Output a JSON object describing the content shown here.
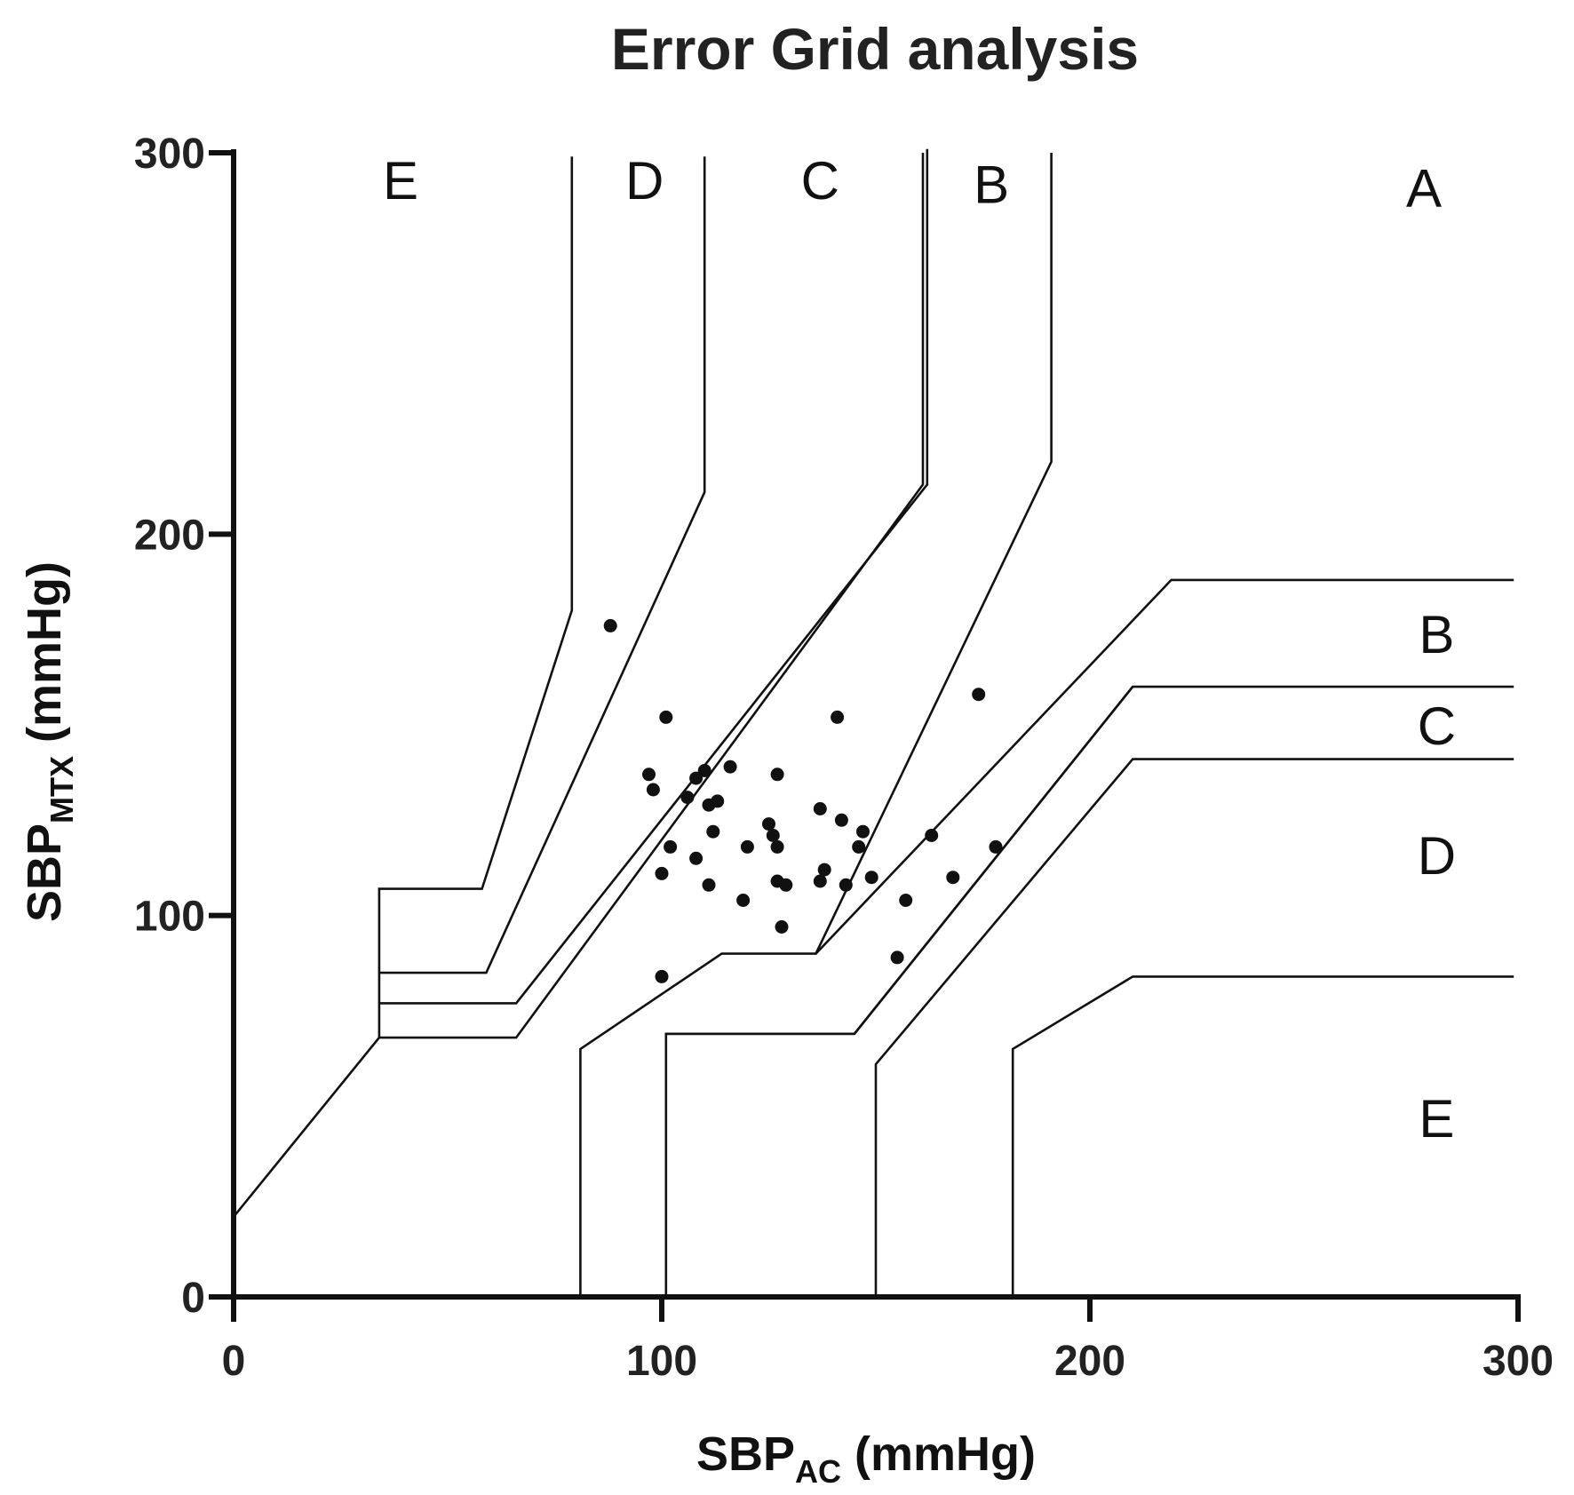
{
  "chart_data": {
    "type": "scatter",
    "title": "Error Grid analysis",
    "xlabel": {
      "main": "SBP",
      "sub": "AC",
      "unit": " (mmHg)"
    },
    "ylabel": {
      "main": "SBP",
      "sub": "MTX",
      "unit": " (mmHg)"
    },
    "xlim": [
      0,
      300
    ],
    "ylim": [
      0,
      300
    ],
    "xticks": [
      0,
      100,
      200,
      300
    ],
    "yticks": [
      0,
      100,
      200,
      300
    ],
    "grid": false,
    "zone_labels": [
      {
        "text": "E",
        "x": 39,
        "y": 293
      },
      {
        "text": "D",
        "x": 96,
        "y": 293
      },
      {
        "text": "C",
        "x": 137,
        "y": 293
      },
      {
        "text": "B",
        "x": 177,
        "y": 292
      },
      {
        "text": "A",
        "x": 278,
        "y": 291
      },
      {
        "text": "B",
        "x": 281,
        "y": 174
      },
      {
        "text": "C",
        "x": 281,
        "y": 150
      },
      {
        "text": "D",
        "x": 281,
        "y": 116
      },
      {
        "text": "E",
        "x": 281,
        "y": 47
      }
    ],
    "boundaries": [
      [
        [
          0,
          21
        ],
        [
          34,
          68
        ],
        [
          66,
          68
        ],
        [
          161,
          213
        ],
        [
          161,
          300
        ]
      ],
      [
        [
          34,
          68
        ],
        [
          34,
          107
        ],
        [
          58,
          107
        ],
        [
          79,
          180
        ],
        [
          79,
          299
        ]
      ],
      [
        [
          34,
          85
        ],
        [
          59,
          85
        ],
        [
          110,
          211
        ],
        [
          110,
          299
        ]
      ],
      [
        [
          34,
          77
        ],
        [
          66,
          77
        ],
        [
          162,
          213
        ],
        [
          162,
          301
        ]
      ],
      [
        [
          191,
          300
        ],
        [
          191,
          219
        ],
        [
          136,
          90
        ],
        [
          114,
          90
        ],
        [
          81,
          65
        ],
        [
          81,
          0
        ]
      ],
      [
        [
          101,
          0
        ],
        [
          101,
          69
        ],
        [
          145,
          69
        ],
        [
          210,
          160
        ],
        [
          299,
          160
        ]
      ],
      [
        [
          150,
          0
        ],
        [
          150,
          61
        ],
        [
          210,
          141
        ],
        [
          299,
          141
        ]
      ],
      [
        [
          182,
          0
        ],
        [
          182,
          65
        ],
        [
          210,
          84
        ],
        [
          299,
          84
        ]
      ],
      [
        [
          101,
          69
        ],
        [
          145,
          69
        ],
        [
          210,
          160
        ]
      ],
      [
        [
          136,
          90
        ],
        [
          219,
          188
        ],
        [
          299,
          188
        ]
      ]
    ],
    "points": [
      [
        88,
        176
      ],
      [
        101,
        152
      ],
      [
        97,
        137
      ],
      [
        98,
        133
      ],
      [
        106,
        131
      ],
      [
        108,
        136
      ],
      [
        110,
        138
      ],
      [
        111,
        129
      ],
      [
        113,
        130
      ],
      [
        116,
        139
      ],
      [
        127,
        137
      ],
      [
        137,
        128
      ],
      [
        141,
        152
      ],
      [
        174,
        158
      ],
      [
        102,
        118
      ],
      [
        108,
        115
      ],
      [
        112,
        122
      ],
      [
        100,
        111
      ],
      [
        111,
        108
      ],
      [
        120,
        118
      ],
      [
        119,
        104
      ],
      [
        125,
        124
      ],
      [
        126,
        121
      ],
      [
        127,
        118
      ],
      [
        127,
        109
      ],
      [
        129,
        108
      ],
      [
        137,
        109
      ],
      [
        138,
        112
      ],
      [
        142,
        125
      ],
      [
        146,
        118
      ],
      [
        147,
        122
      ],
      [
        149,
        110
      ],
      [
        143,
        108
      ],
      [
        128,
        97
      ],
      [
        100,
        84
      ],
      [
        155,
        89
      ],
      [
        157,
        104
      ],
      [
        163,
        121
      ],
      [
        168,
        110
      ],
      [
        178,
        118
      ]
    ]
  }
}
